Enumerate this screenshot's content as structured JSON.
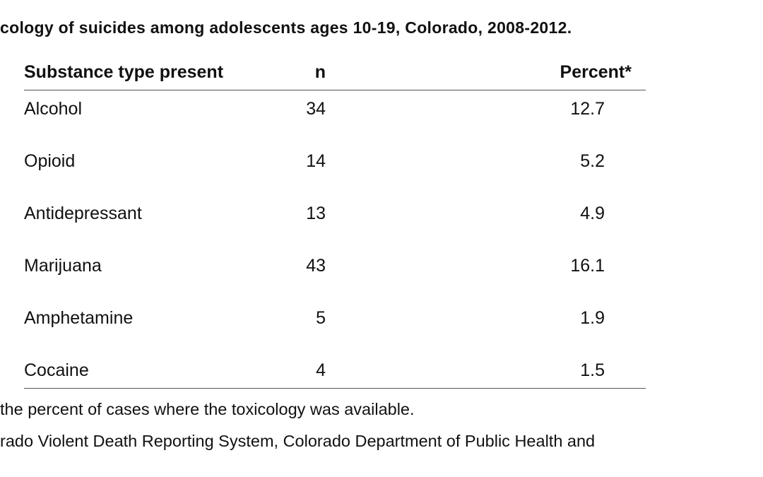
{
  "title": "cology of suicides among adolescents ages 10-19,  Colorado, 2008-2012.",
  "table": {
    "headers": {
      "substance": "Substance type present",
      "n": "n",
      "percent": "Percent*"
    },
    "rows": [
      {
        "substance": "Alcohol",
        "n": "34",
        "percent": "12.7"
      },
      {
        "substance": "Opioid",
        "n": "14",
        "percent": "5.2"
      },
      {
        "substance": "Antidepressant",
        "n": "13",
        "percent": "4.9"
      },
      {
        "substance": "Marijuana",
        "n": "43",
        "percent": "16.1"
      },
      {
        "substance": "Amphetamine",
        "n": "5",
        "percent": "1.9"
      },
      {
        "substance": "Cocaine",
        "n": "4",
        "percent": "1.5"
      }
    ]
  },
  "footnotes": {
    "percent_note": "the percent of cases where the toxicology was available.",
    "source": "rado Violent Death Reporting System, Colorado Department of Public Health and"
  }
}
